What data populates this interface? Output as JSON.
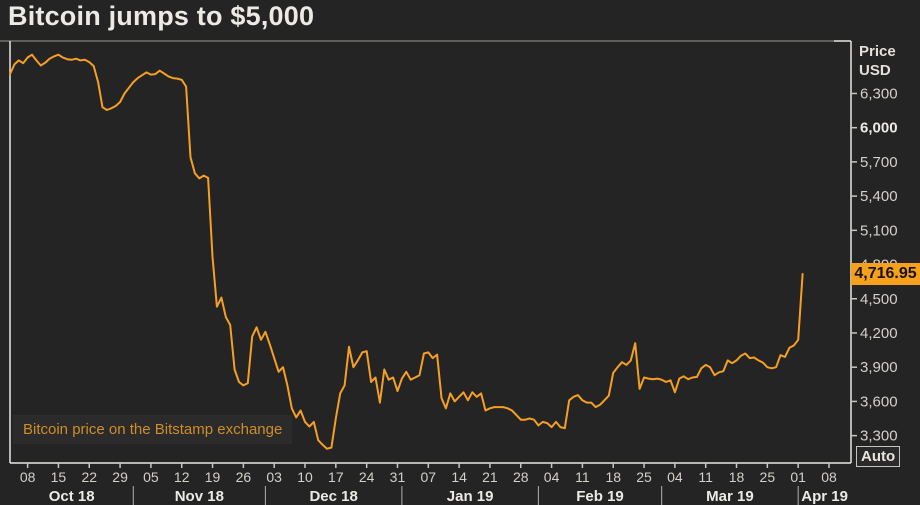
{
  "header": {
    "title": "Bitcoin jumps to $5,000"
  },
  "y_axis": {
    "header_line1": "Price",
    "header_line2": "USD",
    "auto_label": "Auto"
  },
  "annotation": "Bitcoin price on the Bitstamp exchange",
  "colors": {
    "background": "#242424",
    "line": "#f59f24",
    "badge_bg": "#f7a01c",
    "badge_text": "#141414",
    "annotation_text": "#cf8d2a",
    "axis_text": "#d3d0ca",
    "axis_text_bright": "#eceae4",
    "frame": "#e9e7e1",
    "title_underline": "#9a9792",
    "tick": "#c9c7c1",
    "month_separator": "#b3b0aa"
  },
  "chart_data": {
    "type": "line",
    "title": "Bitcoin jumps to $5,000",
    "x_axis": {
      "start_date": "2018-10-04",
      "end_date": "2019-04-02",
      "interval": "daily",
      "days_shown": 191
    },
    "ylabel": "Price USD",
    "ylim": [
      3060,
      6760
    ],
    "grid": false,
    "legend_position": "none",
    "last_price": 4716.95,
    "last_price_label": "4,716.95",
    "y_ticks": [
      {
        "value": 6300,
        "label": "6,300",
        "bold": false
      },
      {
        "value": 6000,
        "label": "6,000",
        "bold": true
      },
      {
        "value": 5700,
        "label": "5,700",
        "bold": false
      },
      {
        "value": 5400,
        "label": "5,400",
        "bold": false
      },
      {
        "value": 5100,
        "label": "5,100",
        "bold": false
      },
      {
        "value": 4800,
        "label": "4,800",
        "bold": false
      },
      {
        "value": 4500,
        "label": "4,500",
        "bold": false
      },
      {
        "value": 4200,
        "label": "4,200",
        "bold": false
      },
      {
        "value": 3900,
        "label": "3,900",
        "bold": false
      },
      {
        "value": 3600,
        "label": "3,600",
        "bold": false
      },
      {
        "value": 3300,
        "label": "3,300",
        "bold": false
      }
    ],
    "x_ticks": [
      {
        "day": 4,
        "label": "08"
      },
      {
        "day": 11,
        "label": "15"
      },
      {
        "day": 18,
        "label": "22"
      },
      {
        "day": 25,
        "label": "29"
      },
      {
        "day": 32,
        "label": "05"
      },
      {
        "day": 39,
        "label": "12"
      },
      {
        "day": 46,
        "label": "19"
      },
      {
        "day": 53,
        "label": "26"
      },
      {
        "day": 60,
        "label": "03"
      },
      {
        "day": 67,
        "label": "10"
      },
      {
        "day": 74,
        "label": "17"
      },
      {
        "day": 81,
        "label": "24"
      },
      {
        "day": 88,
        "label": "31"
      },
      {
        "day": 95,
        "label": "07"
      },
      {
        "day": 102,
        "label": "14"
      },
      {
        "day": 109,
        "label": "21"
      },
      {
        "day": 116,
        "label": "28"
      },
      {
        "day": 123,
        "label": "04"
      },
      {
        "day": 130,
        "label": "11"
      },
      {
        "day": 137,
        "label": "18"
      },
      {
        "day": 144,
        "label": "25"
      },
      {
        "day": 151,
        "label": "04"
      },
      {
        "day": 158,
        "label": "11"
      },
      {
        "day": 165,
        "label": "18"
      },
      {
        "day": 172,
        "label": "25"
      },
      {
        "day": 179,
        "label": "01"
      },
      {
        "day": 186,
        "label": "08"
      }
    ],
    "months": [
      {
        "label": "Oct 18",
        "start": 0,
        "end": 28,
        "separator": false
      },
      {
        "label": "Nov 18",
        "start": 28,
        "end": 58,
        "separator": true
      },
      {
        "label": "Dec 18",
        "start": 58,
        "end": 89,
        "separator": true
      },
      {
        "label": "Jan 19",
        "start": 89,
        "end": 120,
        "separator": true
      },
      {
        "label": "Feb 19",
        "start": 120,
        "end": 148,
        "separator": true
      },
      {
        "label": "Mar 19",
        "start": 148,
        "end": 179,
        "separator": true
      },
      {
        "label": "Apr 19",
        "start": 179,
        "end": 191,
        "separator": true
      }
    ],
    "series": [
      {
        "name": "Bitcoin price on the Bitstamp exchange",
        "unit": "USD",
        "start_date": "2018-10-04",
        "values": [
          6470,
          6555,
          6590,
          6565,
          6615,
          6640,
          6590,
          6545,
          6570,
          6605,
          6625,
          6640,
          6615,
          6600,
          6595,
          6605,
          6590,
          6595,
          6575,
          6540,
          6400,
          6180,
          6155,
          6170,
          6190,
          6225,
          6300,
          6350,
          6400,
          6435,
          6460,
          6485,
          6465,
          6470,
          6500,
          6475,
          6450,
          6435,
          6430,
          6420,
          6360,
          5740,
          5600,
          5555,
          5580,
          5560,
          4870,
          4430,
          4510,
          4340,
          4270,
          3880,
          3770,
          3740,
          3760,
          4170,
          4250,
          4140,
          4210,
          4100,
          3980,
          3860,
          3900,
          3740,
          3540,
          3460,
          3520,
          3420,
          3380,
          3420,
          3260,
          3220,
          3185,
          3195,
          3450,
          3670,
          3740,
          4080,
          3900,
          3960,
          4030,
          4040,
          3770,
          3810,
          3590,
          3880,
          3790,
          3810,
          3690,
          3800,
          3860,
          3790,
          3810,
          3830,
          4020,
          4030,
          3980,
          4010,
          3630,
          3540,
          3670,
          3600,
          3640,
          3680,
          3610,
          3680,
          3640,
          3670,
          3520,
          3540,
          3550,
          3550,
          3550,
          3540,
          3520,
          3480,
          3440,
          3440,
          3450,
          3440,
          3390,
          3420,
          3410,
          3375,
          3420,
          3375,
          3365,
          3610,
          3640,
          3655,
          3610,
          3590,
          3590,
          3550,
          3570,
          3610,
          3650,
          3850,
          3900,
          3944,
          3920,
          3960,
          4110,
          3710,
          3810,
          3800,
          3795,
          3800,
          3790,
          3770,
          3785,
          3680,
          3800,
          3820,
          3795,
          3810,
          3815,
          3890,
          3920,
          3900,
          3830,
          3855,
          3865,
          3960,
          3935,
          3960,
          4000,
          4020,
          3980,
          3985,
          3960,
          3940,
          3900,
          3890,
          3900,
          4005,
          3990,
          4070,
          4090,
          4140,
          4716.95
        ]
      }
    ]
  }
}
